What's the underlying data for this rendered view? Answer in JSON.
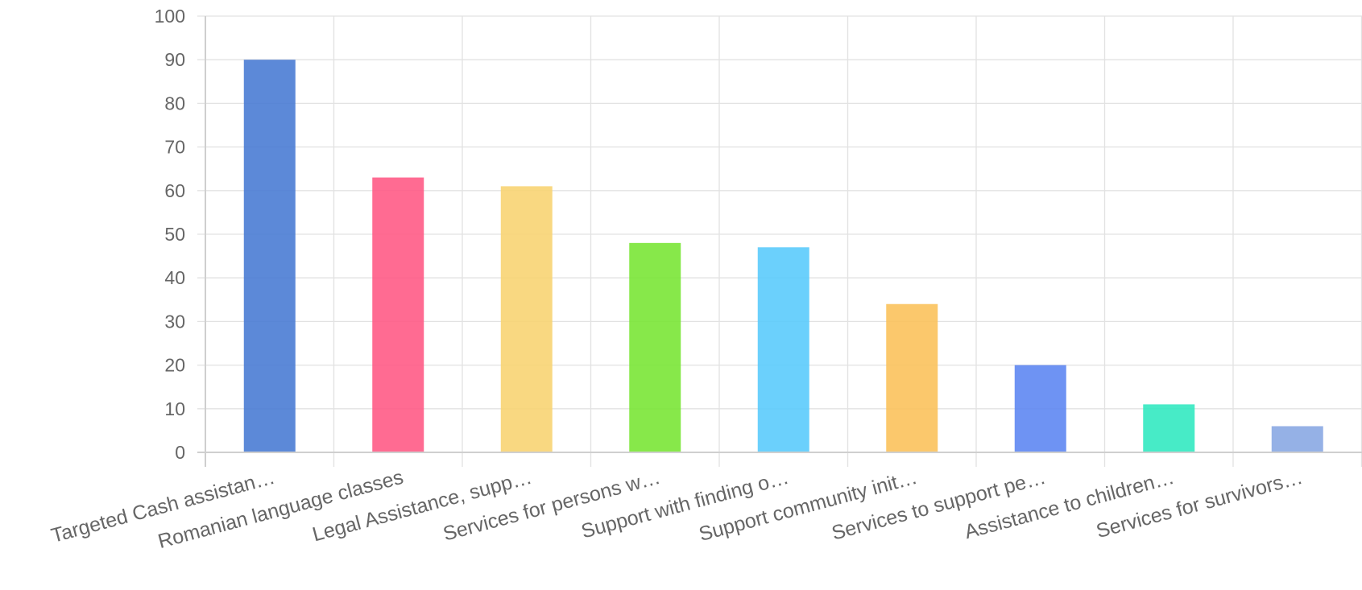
{
  "chart_data": {
    "type": "bar",
    "title": "",
    "xlabel": "",
    "ylabel": "",
    "ylim": [
      0,
      100
    ],
    "yticks": [
      0,
      10,
      20,
      30,
      40,
      50,
      60,
      70,
      80,
      90,
      100
    ],
    "grid": true,
    "legend": "none",
    "categories": [
      "Targeted Cash assistan…",
      "Romanian language classes",
      "Legal Assistance, supp…",
      "Services for persons w…",
      "Support with finding o…",
      "Support community init…",
      "Services to support pe…",
      "Assistance to children…",
      "Services for survivors…"
    ],
    "values": [
      90,
      63,
      61,
      48,
      47,
      34,
      20,
      11,
      6
    ],
    "colors": [
      "#4a7cd4",
      "#ff5b86",
      "#f8d473",
      "#7ae636",
      "#5bcbfc",
      "#fbc25c",
      "#5e87f2",
      "#33e9c1",
      "#89a9e3"
    ]
  }
}
